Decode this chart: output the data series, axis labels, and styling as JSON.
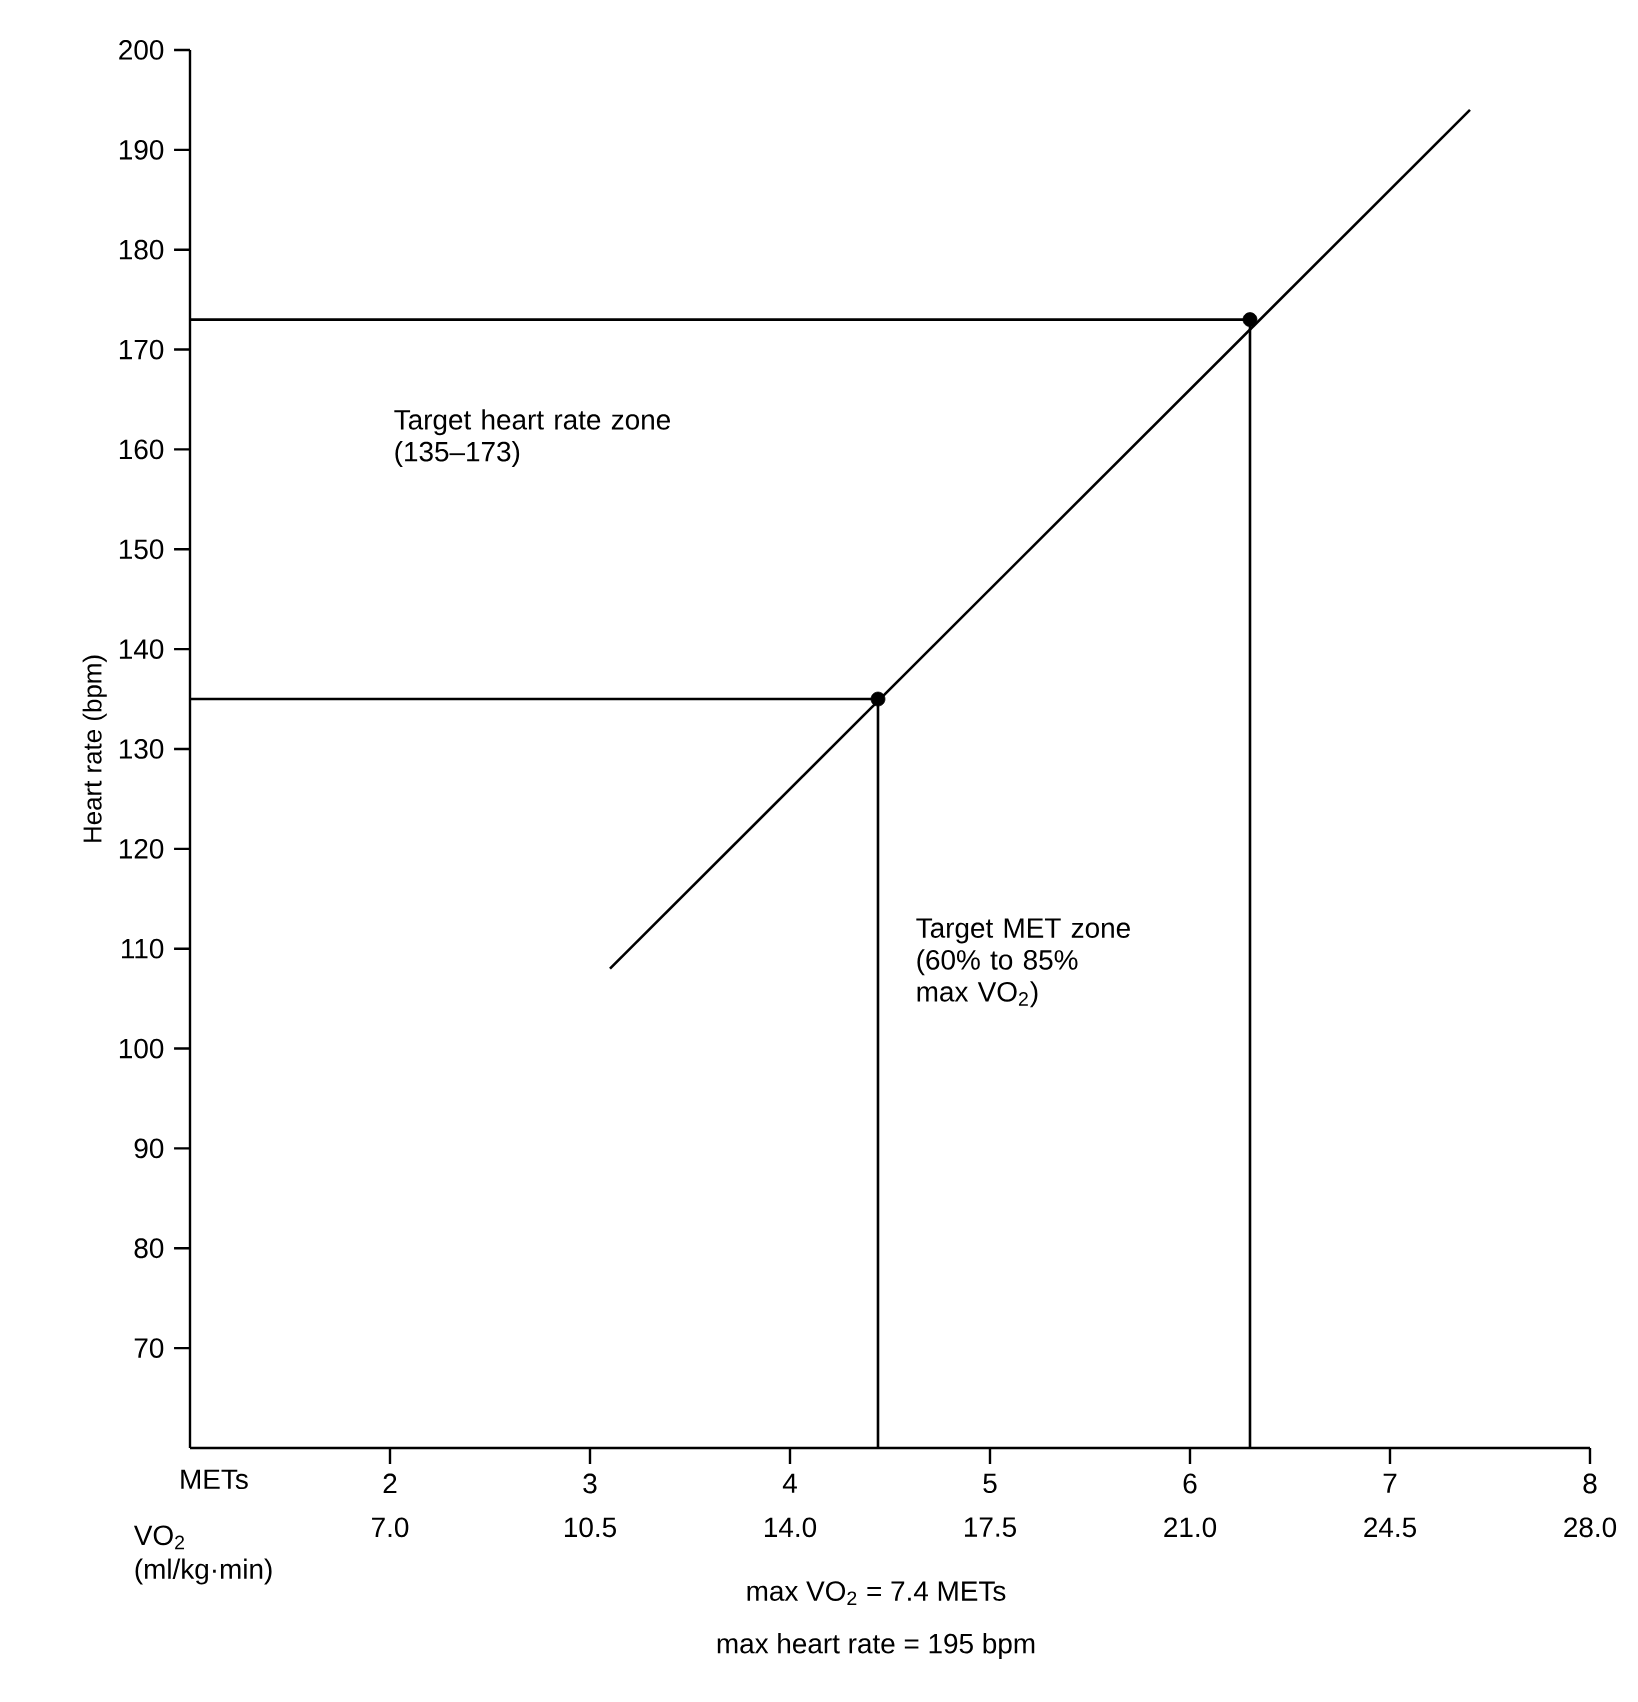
{
  "chart_data": {
    "type": "line",
    "xlabel": "METs",
    "x2label": "VO$_{2}$ (ml/kg·min)",
    "ylabel": "Heart rate (bpm)",
    "xlim": [
      1,
      8
    ],
    "xticks": [
      2,
      3,
      4,
      5,
      6,
      7,
      8
    ],
    "x2lim": [
      3.5,
      28
    ],
    "x2ticks": [
      {
        "value": 7,
        "label": "7.0"
      },
      {
        "value": 10.5,
        "label": "10.5"
      },
      {
        "value": 14,
        "label": "14.0"
      },
      {
        "value": 17.5,
        "label": "17.5"
      },
      {
        "value": 21,
        "label": "21.0"
      },
      {
        "value": 24.5,
        "label": "24.5"
      },
      {
        "value": 28,
        "label": "28.0"
      }
    ],
    "ylim": [
      60,
      200
    ],
    "yticks": [
      70,
      80,
      90,
      100,
      110,
      120,
      130,
      140,
      150,
      160,
      170,
      180,
      190,
      200
    ],
    "grid": false,
    "series": [
      {
        "color": "#000000",
        "marker": "none",
        "x": [
          3.1,
          7.4
        ],
        "values": [
          108,
          194
        ]
      },
      {
        "color": "#000000",
        "marker": "none",
        "x": [
          1,
          4.44,
          4.44
        ],
        "values": [
          135,
          135,
          60
        ]
      },
      {
        "color": "#000000",
        "marker": "none",
        "x": [
          1,
          6.3,
          6.3
        ],
        "values": [
          173,
          173,
          60
        ]
      },
      {
        "type": "scatter",
        "color": "#000000",
        "marker": "circle",
        "x": [
          4.44,
          6.3
        ],
        "values": [
          135,
          173
        ]
      }
    ],
    "annotations": [
      "Target heart rate zone (135–173)",
      "Target MET zone (60% to 85% max VO$_{2}$)",
      "max VO$_{2}$ = 7.4 METs",
      "max heart rate = 195 bpm"
    ]
  }
}
